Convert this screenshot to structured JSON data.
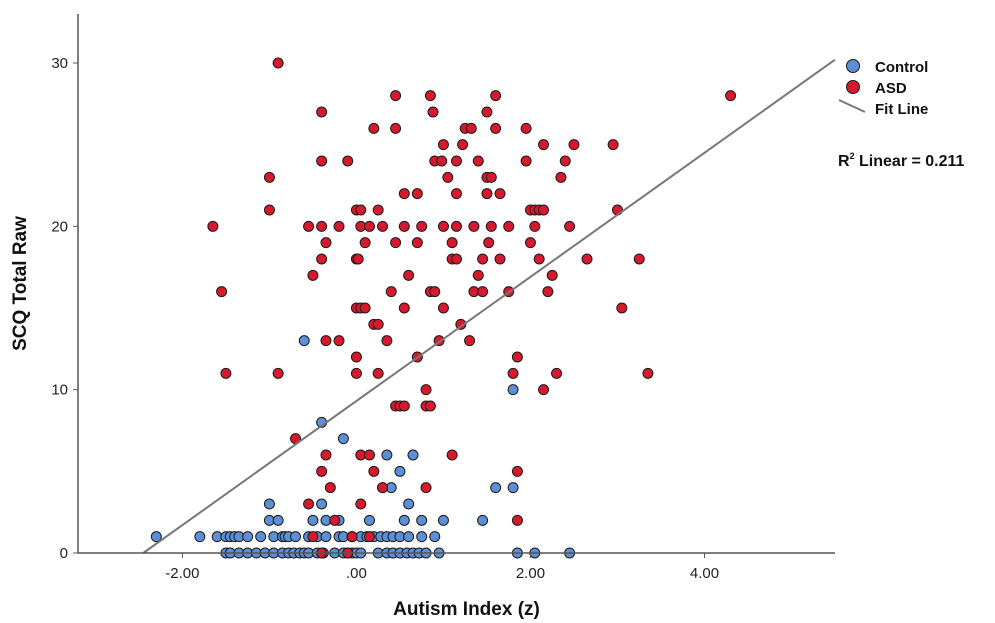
{
  "chart_data": {
    "type": "scatter",
    "xlabel": "Autism Index (z)",
    "ylabel": "SCQ Total Raw",
    "xlim": [
      -3.2,
      5.5
    ],
    "ylim": [
      0,
      33
    ],
    "x_ticks": [
      {
        "value": -2,
        "label": "-2.00"
      },
      {
        "value": 0,
        "label": ".00"
      },
      {
        "value": 2,
        "label": "2.00"
      },
      {
        "value": 4,
        "label": "4.00"
      }
    ],
    "y_ticks": [
      {
        "value": 0,
        "label": "0"
      },
      {
        "value": 10,
        "label": "10"
      },
      {
        "value": 20,
        "label": "20"
      },
      {
        "value": 30,
        "label": "30"
      }
    ],
    "legend": {
      "position": "right",
      "items": [
        {
          "label": "Control",
          "kind": "marker",
          "color": "#5b8fd6"
        },
        {
          "label": "ASD",
          "kind": "marker",
          "color": "#d7192e"
        },
        {
          "label": "Fit Line",
          "kind": "line",
          "color": "#777777"
        }
      ]
    },
    "annotation": {
      "prefix": "R",
      "superscript": "2",
      "suffix": " Linear = 0.211"
    },
    "fit_line": {
      "x": [
        -2.45,
        5.5
      ],
      "y": [
        0,
        30.2
      ],
      "color": "#777777"
    },
    "series": [
      {
        "name": "Control",
        "color": "#5b8fd6",
        "points": [
          [
            -2.3,
            1
          ],
          [
            -1.8,
            1
          ],
          [
            -1.6,
            1
          ],
          [
            -1.5,
            1
          ],
          [
            -1.45,
            1
          ],
          [
            -1.4,
            1
          ],
          [
            -1.35,
            1
          ],
          [
            -1.25,
            1
          ],
          [
            -1.1,
            1
          ],
          [
            -0.95,
            1
          ],
          [
            -0.85,
            1
          ],
          [
            -0.82,
            1
          ],
          [
            -0.78,
            1
          ],
          [
            -0.7,
            1
          ],
          [
            -0.55,
            1
          ],
          [
            -0.45,
            1
          ],
          [
            -0.35,
            1
          ],
          [
            -0.2,
            1
          ],
          [
            -0.15,
            1
          ],
          [
            -0.05,
            1
          ],
          [
            0.05,
            1
          ],
          [
            0.12,
            1
          ],
          [
            0.2,
            1
          ],
          [
            0.28,
            1
          ],
          [
            0.35,
            1
          ],
          [
            0.42,
            1
          ],
          [
            0.5,
            1
          ],
          [
            0.6,
            1
          ],
          [
            0.75,
            1
          ],
          [
            0.9,
            1
          ],
          [
            -1.5,
            0
          ],
          [
            -1.45,
            0
          ],
          [
            -1.35,
            0
          ],
          [
            -1.25,
            0
          ],
          [
            -1.15,
            0
          ],
          [
            -1.05,
            0
          ],
          [
            -0.95,
            0
          ],
          [
            -0.85,
            0
          ],
          [
            -0.78,
            0
          ],
          [
            -0.72,
            0
          ],
          [
            -0.65,
            0
          ],
          [
            -0.6,
            0
          ],
          [
            -0.55,
            0
          ],
          [
            -0.45,
            0
          ],
          [
            -0.38,
            0
          ],
          [
            -0.25,
            0
          ],
          [
            -0.15,
            0
          ],
          [
            -0.1,
            0
          ],
          [
            -0.05,
            0
          ],
          [
            0.0,
            0
          ],
          [
            0.05,
            0
          ],
          [
            0.25,
            0
          ],
          [
            0.35,
            0
          ],
          [
            0.42,
            0
          ],
          [
            0.5,
            0
          ],
          [
            0.58,
            0
          ],
          [
            0.65,
            0
          ],
          [
            0.72,
            0
          ],
          [
            0.8,
            0
          ],
          [
            0.95,
            0
          ],
          [
            1.85,
            0
          ],
          [
            2.05,
            0
          ],
          [
            2.45,
            0
          ],
          [
            -1.0,
            2
          ],
          [
            -0.9,
            2
          ],
          [
            -0.5,
            2
          ],
          [
            -0.35,
            2
          ],
          [
            -0.2,
            2
          ],
          [
            0.15,
            2
          ],
          [
            0.55,
            2
          ],
          [
            0.75,
            2
          ],
          [
            1.0,
            2
          ],
          [
            1.45,
            2
          ],
          [
            -1.0,
            3
          ],
          [
            -0.4,
            3
          ],
          [
            0.6,
            3
          ],
          [
            0.4,
            4
          ],
          [
            0.3,
            4
          ],
          [
            1.6,
            4
          ],
          [
            1.8,
            4
          ],
          [
            0.5,
            5
          ],
          [
            0.35,
            6
          ],
          [
            0.65,
            6
          ],
          [
            -0.15,
            7
          ],
          [
            -0.4,
            8
          ],
          [
            1.8,
            10
          ],
          [
            -0.6,
            13
          ]
        ]
      },
      {
        "name": "ASD",
        "color": "#d7192e",
        "points": [
          [
            -0.9,
            30
          ],
          [
            0.45,
            28
          ],
          [
            0.85,
            28
          ],
          [
            1.6,
            28
          ],
          [
            4.3,
            28
          ],
          [
            -0.4,
            27
          ],
          [
            0.88,
            27
          ],
          [
            1.5,
            27
          ],
          [
            0.2,
            26
          ],
          [
            0.45,
            26
          ],
          [
            1.25,
            26
          ],
          [
            1.32,
            26
          ],
          [
            1.6,
            26
          ],
          [
            1.95,
            26
          ],
          [
            1.0,
            25
          ],
          [
            1.22,
            25
          ],
          [
            2.15,
            25
          ],
          [
            2.5,
            25
          ],
          [
            2.95,
            25
          ],
          [
            -0.4,
            24
          ],
          [
            -0.1,
            24
          ],
          [
            0.9,
            24
          ],
          [
            0.98,
            24
          ],
          [
            1.15,
            24
          ],
          [
            1.4,
            24
          ],
          [
            1.95,
            24
          ],
          [
            2.4,
            24
          ],
          [
            -1.0,
            23
          ],
          [
            1.05,
            23
          ],
          [
            1.5,
            23
          ],
          [
            1.55,
            23
          ],
          [
            2.35,
            23
          ],
          [
            0.55,
            22
          ],
          [
            0.7,
            22
          ],
          [
            1.15,
            22
          ],
          [
            1.5,
            22
          ],
          [
            1.65,
            22
          ],
          [
            -1.0,
            21
          ],
          [
            0.0,
            21
          ],
          [
            0.05,
            21
          ],
          [
            0.25,
            21
          ],
          [
            2.0,
            21
          ],
          [
            2.05,
            21
          ],
          [
            2.1,
            21
          ],
          [
            2.15,
            21
          ],
          [
            3.0,
            21
          ],
          [
            -1.65,
            20
          ],
          [
            -0.55,
            20
          ],
          [
            -0.4,
            20
          ],
          [
            -0.2,
            20
          ],
          [
            0.05,
            20
          ],
          [
            0.15,
            20
          ],
          [
            0.3,
            20
          ],
          [
            0.55,
            20
          ],
          [
            0.75,
            20
          ],
          [
            1.0,
            20
          ],
          [
            1.15,
            20
          ],
          [
            1.35,
            20
          ],
          [
            1.55,
            20
          ],
          [
            1.75,
            20
          ],
          [
            2.05,
            20
          ],
          [
            2.45,
            20
          ],
          [
            -0.35,
            19
          ],
          [
            0.1,
            19
          ],
          [
            0.45,
            19
          ],
          [
            0.7,
            19
          ],
          [
            1.1,
            19
          ],
          [
            1.52,
            19
          ],
          [
            2.0,
            19
          ],
          [
            -0.4,
            18
          ],
          [
            0.0,
            18
          ],
          [
            0.02,
            18
          ],
          [
            1.1,
            18
          ],
          [
            1.15,
            18
          ],
          [
            1.45,
            18
          ],
          [
            1.65,
            18
          ],
          [
            2.1,
            18
          ],
          [
            2.65,
            18
          ],
          [
            3.25,
            18
          ],
          [
            -0.5,
            17
          ],
          [
            0.6,
            17
          ],
          [
            1.4,
            17
          ],
          [
            2.25,
            17
          ],
          [
            -1.55,
            16
          ],
          [
            0.4,
            16
          ],
          [
            0.85,
            16
          ],
          [
            0.9,
            16
          ],
          [
            1.35,
            16
          ],
          [
            1.45,
            16
          ],
          [
            1.75,
            16
          ],
          [
            2.2,
            16
          ],
          [
            0.0,
            15
          ],
          [
            0.05,
            15
          ],
          [
            0.1,
            15
          ],
          [
            0.55,
            15
          ],
          [
            1.0,
            15
          ],
          [
            3.05,
            15
          ],
          [
            0.2,
            14
          ],
          [
            0.25,
            14
          ],
          [
            1.2,
            14
          ],
          [
            -0.35,
            13
          ],
          [
            -0.2,
            13
          ],
          [
            0.35,
            13
          ],
          [
            0.95,
            13
          ],
          [
            1.3,
            13
          ],
          [
            0.0,
            12
          ],
          [
            0.7,
            12
          ],
          [
            1.85,
            12
          ],
          [
            -1.5,
            11
          ],
          [
            -0.9,
            11
          ],
          [
            0.0,
            11
          ],
          [
            0.25,
            11
          ],
          [
            1.8,
            11
          ],
          [
            2.3,
            11
          ],
          [
            3.35,
            11
          ],
          [
            0.8,
            10
          ],
          [
            2.15,
            10
          ],
          [
            0.45,
            9
          ],
          [
            0.5,
            9
          ],
          [
            0.55,
            9
          ],
          [
            0.8,
            9
          ],
          [
            0.85,
            9
          ],
          [
            -0.7,
            7
          ],
          [
            -0.4,
            5
          ],
          [
            0.2,
            5
          ],
          [
            1.85,
            5
          ],
          [
            -0.35,
            6
          ],
          [
            0.05,
            6
          ],
          [
            0.15,
            6
          ],
          [
            1.1,
            6
          ],
          [
            -0.3,
            4
          ],
          [
            0.3,
            4
          ],
          [
            0.8,
            4
          ],
          [
            -0.55,
            3
          ],
          [
            0.05,
            3
          ],
          [
            -0.25,
            2
          ],
          [
            1.85,
            2
          ],
          [
            -0.5,
            1
          ],
          [
            0.15,
            1
          ],
          [
            -0.05,
            1
          ],
          [
            -0.4,
            0
          ],
          [
            -0.1,
            0
          ]
        ]
      }
    ]
  }
}
